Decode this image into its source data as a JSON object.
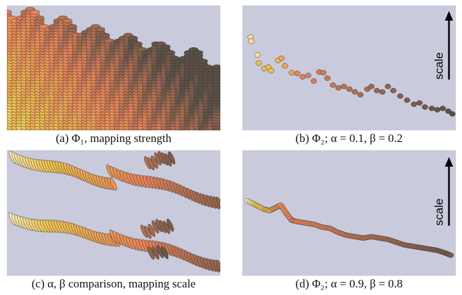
{
  "captions": {
    "a": "(a) Φ₁, mapping strength",
    "b": "(b) Φ₂; α = 0.1, β = 0.2",
    "c": "(c) α, β comparison, mapping scale",
    "d": "(d) Φ₂; α = 0.9, β = 0.8"
  },
  "scale_label": "scale",
  "colors": {
    "background": "#c9cbdc",
    "glyph_light": "#fff8d8",
    "glyph_yellow": "#f0c850",
    "glyph_orange": "#e8845a",
    "glyph_dark": "#5a5048"
  }
}
